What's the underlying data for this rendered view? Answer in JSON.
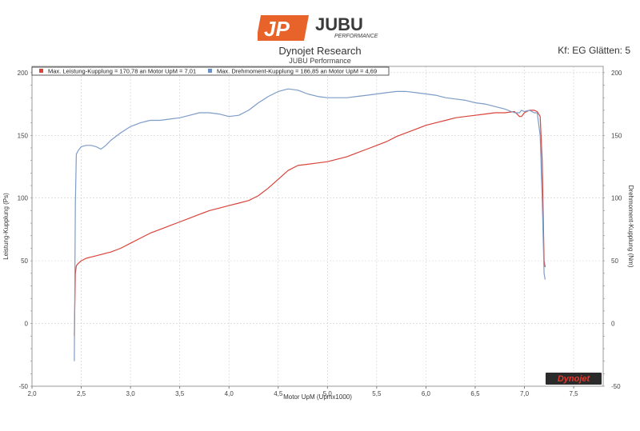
{
  "header": {
    "logo_letters": "JP",
    "logo_name": "JUBU",
    "logo_tagline": "PERFORMANCE",
    "title": "Dynojet Research",
    "subtitle": "JUBU Performance",
    "smoothing": "Kf: EG Glätten: 5"
  },
  "watermark": "Dynojet",
  "colors": {
    "power": "#d9433a",
    "torque": "#7d9cc8",
    "logo_orange": "#e8632a",
    "grid": "#cfcfcf"
  },
  "chart_data": {
    "type": "line",
    "xlabel": "Motor UpM (Upmx1000)",
    "ylabel_left": "Leistung-Kupplung (Ps)",
    "ylabel_right": "Drehmoment-Kupplung (Nm)",
    "xlim": [
      2.0,
      7.8
    ],
    "ylim": [
      -50,
      205
    ],
    "x_ticks": [
      "2,0",
      "2,5",
      "3,0",
      "3,5",
      "4,0",
      "4,5",
      "5,0",
      "5,5",
      "6,0",
      "6,5",
      "7,0",
      "7,5"
    ],
    "y_ticks": [
      "200",
      "150",
      "100",
      "50",
      "0",
      "-50"
    ],
    "grid": true,
    "legend_position": "top-left",
    "series": [
      {
        "name": "Max. Leistung-Kupplung = 170,78 an Motor UpM = 7,01",
        "axis": "left",
        "x": [
          2.43,
          2.44,
          2.45,
          2.47,
          2.5,
          2.55,
          2.6,
          2.65,
          2.7,
          2.75,
          2.8,
          2.9,
          3.0,
          3.1,
          3.2,
          3.3,
          3.4,
          3.5,
          3.6,
          3.7,
          3.8,
          3.9,
          4.0,
          4.1,
          4.2,
          4.3,
          4.4,
          4.5,
          4.6,
          4.7,
          4.8,
          4.9,
          5.0,
          5.1,
          5.2,
          5.3,
          5.4,
          5.5,
          5.6,
          5.7,
          5.8,
          5.9,
          6.0,
          6.1,
          6.2,
          6.3,
          6.4,
          6.5,
          6.6,
          6.7,
          6.8,
          6.9,
          6.95,
          6.97,
          7.0,
          7.05,
          7.1,
          7.13,
          7.16,
          7.18,
          7.2,
          7.21
        ],
        "values": [
          -10,
          40,
          46,
          48,
          50,
          52,
          53,
          54,
          55,
          56,
          57,
          60,
          64,
          68,
          72,
          75,
          78,
          81,
          84,
          87,
          90,
          92,
          94,
          96,
          98,
          102,
          108,
          115,
          122,
          126,
          127,
          128,
          129,
          131,
          133,
          136,
          139,
          142,
          145,
          149,
          152,
          155,
          158,
          160,
          162,
          164,
          165,
          166,
          167,
          168,
          168,
          169,
          165,
          165,
          168,
          170,
          170,
          169,
          165,
          130,
          50,
          45
        ]
      },
      {
        "name": "Max. Drehmoment-Kupplung = 186,85 an Motor UpM = 4,69",
        "axis": "right",
        "x": [
          2.43,
          2.44,
          2.45,
          2.47,
          2.5,
          2.55,
          2.6,
          2.65,
          2.7,
          2.75,
          2.8,
          2.9,
          3.0,
          3.1,
          3.2,
          3.3,
          3.4,
          3.5,
          3.6,
          3.7,
          3.8,
          3.9,
          4.0,
          4.1,
          4.2,
          4.3,
          4.4,
          4.5,
          4.6,
          4.7,
          4.8,
          4.9,
          5.0,
          5.1,
          5.2,
          5.3,
          5.4,
          5.5,
          5.6,
          5.7,
          5.8,
          5.9,
          6.0,
          6.1,
          6.2,
          6.3,
          6.4,
          6.5,
          6.6,
          6.7,
          6.8,
          6.9,
          6.95,
          6.97,
          7.0,
          7.05,
          7.1,
          7.13,
          7.16,
          7.18,
          7.2,
          7.21
        ],
        "values": [
          -30,
          95,
          135,
          138,
          141,
          142,
          142,
          141,
          139,
          142,
          146,
          152,
          157,
          160,
          162,
          162,
          163,
          164,
          166,
          168,
          168,
          167,
          165,
          166,
          170,
          176,
          181,
          185,
          187,
          186,
          183,
          181,
          180,
          180,
          180,
          181,
          182,
          183,
          184,
          185,
          185,
          184,
          183,
          182,
          180,
          179,
          178,
          176,
          175,
          173,
          171,
          168,
          168,
          170,
          169,
          170,
          168,
          168,
          150,
          100,
          40,
          35
        ]
      }
    ]
  }
}
